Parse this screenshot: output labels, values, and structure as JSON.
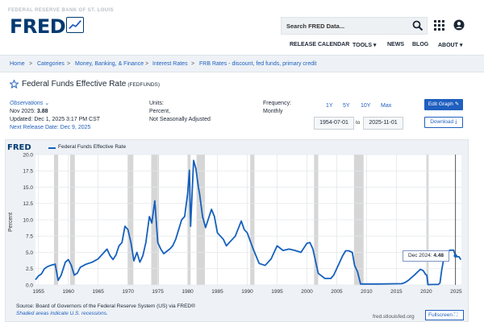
{
  "header": {
    "tagline": "FEDERAL RESERVE BANK OF ST. LOUIS",
    "logo": "FRED",
    "search_placeholder": "Search FRED Data...",
    "nav": [
      "RELEASE CALENDAR",
      "TOOLS ▾",
      "NEWS",
      "BLOG",
      "ABOUT ▾"
    ]
  },
  "breadcrumbs": [
    "Home",
    "Categories",
    "Money, Banking, & Finance",
    "Interest Rates",
    "FRB Rates - discount, fed funds, primary credit"
  ],
  "series": {
    "title": "Federal Funds Effective Rate",
    "id": "(FEDFUNDS)"
  },
  "observations": {
    "label": "Observations",
    "latest_period": "Nov 2025:",
    "latest_value": "3.88",
    "updated": "Updated: Dec 1, 2025 3:17 PM CST",
    "next_release": "Next Release Date: Dec 9, 2025"
  },
  "units": {
    "label": "Units:",
    "line1": "Percent,",
    "line2": "Not Seasonally Adjusted"
  },
  "frequency": {
    "label": "Frequency:",
    "value": "Monthly"
  },
  "range_buttons": [
    "1Y",
    "5Y",
    "10Y",
    "Max"
  ],
  "date_range": {
    "start": "1954-07-01",
    "to": "to",
    "end": "2025-11-01"
  },
  "buttons": {
    "edit": "Edit Graph",
    "download": "Download"
  },
  "chart_footer": {
    "source": "Source: Board of Governors of the Federal Reserve System (US) via FRED®",
    "shade_note": "Shaded areas indicate U.S. recessions.",
    "site": "fred.stlouisfed.org",
    "fullscreen": "Fullscreen"
  },
  "tooltip": {
    "label": "Dec 2024:",
    "value": "4.48"
  },
  "colors": {
    "line": "#1560bd",
    "recession": "#c8c8c8",
    "accent": "#1f5fbf"
  },
  "chart_data": {
    "type": "line",
    "legend": "Federal Funds Effective Rate",
    "ylabel": "Percent",
    "xlim": [
      1954.5,
      2025.9
    ],
    "ylim": [
      0,
      20
    ],
    "yticks": [
      "0.0",
      "2.5",
      "5.0",
      "7.5",
      "10.0",
      "12.5",
      "15.0",
      "17.5",
      "20.0"
    ],
    "xticks": [
      "1955",
      "1960",
      "1965",
      "1970",
      "1975",
      "1980",
      "1985",
      "1990",
      "1995",
      "2000",
      "2005",
      "2010",
      "2015",
      "2020",
      "2025"
    ],
    "recessions": [
      [
        1957.6,
        1958.3
      ],
      [
        1960.3,
        1961.1
      ],
      [
        1969.9,
        1970.9
      ],
      [
        1973.9,
        1975.2
      ],
      [
        1980.0,
        1980.5
      ],
      [
        1981.5,
        1982.9
      ],
      [
        1990.5,
        1991.2
      ],
      [
        2001.2,
        2001.9
      ],
      [
        2007.9,
        2009.5
      ],
      [
        2020.1,
        2020.4
      ]
    ],
    "series": [
      {
        "name": "Federal Funds Effective Rate",
        "x": [
          1954.5,
          1955.0,
          1955.5,
          1956.0,
          1956.5,
          1957.0,
          1957.8,
          1958.3,
          1958.8,
          1959.5,
          1960.0,
          1960.5,
          1961.0,
          1961.5,
          1962.0,
          1963.0,
          1964.0,
          1965.0,
          1966.0,
          1966.5,
          1967.0,
          1967.5,
          1968.0,
          1968.5,
          1969.0,
          1969.5,
          1970.0,
          1970.5,
          1971.0,
          1971.5,
          1972.0,
          1972.5,
          1973.0,
          1973.6,
          1974.0,
          1974.5,
          1975.0,
          1975.5,
          1976.0,
          1977.0,
          1977.5,
          1978.0,
          1978.5,
          1979.0,
          1979.5,
          1980.0,
          1980.3,
          1980.5,
          1980.8,
          1981.0,
          1981.4,
          1981.8,
          1982.0,
          1982.5,
          1983.0,
          1984.0,
          1984.5,
          1985.0,
          1986.0,
          1986.5,
          1987.0,
          1988.0,
          1989.0,
          1989.5,
          1990.0,
          1991.0,
          1992.0,
          1993.0,
          1994.0,
          1995.0,
          1996.0,
          1997.0,
          1998.0,
          1999.0,
          2000.0,
          2000.5,
          2001.0,
          2001.9,
          2002.0,
          2003.0,
          2004.0,
          2004.5,
          2005.0,
          2006.0,
          2006.5,
          2007.0,
          2007.6,
          2008.0,
          2008.5,
          2008.9,
          2009.0,
          2012.0,
          2015.9,
          2016.5,
          2017.0,
          2018.0,
          2019.0,
          2019.5,
          2019.9,
          2020.1,
          2020.3,
          2021.0,
          2022.0,
          2022.3,
          2022.6,
          2022.9,
          2023.5,
          2024.0,
          2024.6,
          2024.9,
          2025.0,
          2025.5,
          2025.8
        ],
        "y": [
          0.8,
          1.4,
          1.7,
          2.5,
          2.8,
          3.0,
          3.2,
          0.7,
          1.5,
          3.5,
          3.9,
          3.0,
          1.5,
          1.8,
          2.7,
          3.2,
          3.5,
          4.0,
          5.0,
          5.5,
          4.5,
          3.9,
          4.6,
          6.0,
          6.5,
          9.0,
          8.5,
          6.5,
          3.7,
          5.0,
          3.5,
          4.5,
          6.5,
          10.5,
          9.5,
          12.9,
          6.5,
          5.5,
          4.8,
          5.5,
          6.0,
          7.0,
          8.5,
          10.0,
          10.5,
          14.0,
          17.6,
          9.0,
          15.0,
          19.1,
          17.8,
          15.0,
          14.0,
          10.5,
          8.8,
          11.6,
          10.5,
          8.0,
          7.0,
          6.0,
          6.5,
          7.5,
          9.8,
          8.5,
          8.0,
          5.5,
          3.3,
          3.0,
          4.0,
          6.0,
          5.3,
          5.5,
          5.3,
          5.0,
          6.4,
          6.5,
          5.5,
          1.8,
          1.7,
          1.0,
          1.0,
          1.5,
          2.5,
          4.5,
          5.25,
          5.25,
          5.0,
          3.0,
          2.0,
          0.5,
          0.15,
          0.15,
          0.2,
          0.4,
          0.7,
          1.5,
          2.4,
          2.2,
          1.6,
          1.5,
          0.05,
          0.08,
          0.08,
          0.3,
          2.3,
          3.8,
          5.1,
          5.33,
          5.33,
          4.5,
          4.33,
          4.33,
          3.88
        ]
      }
    ]
  }
}
